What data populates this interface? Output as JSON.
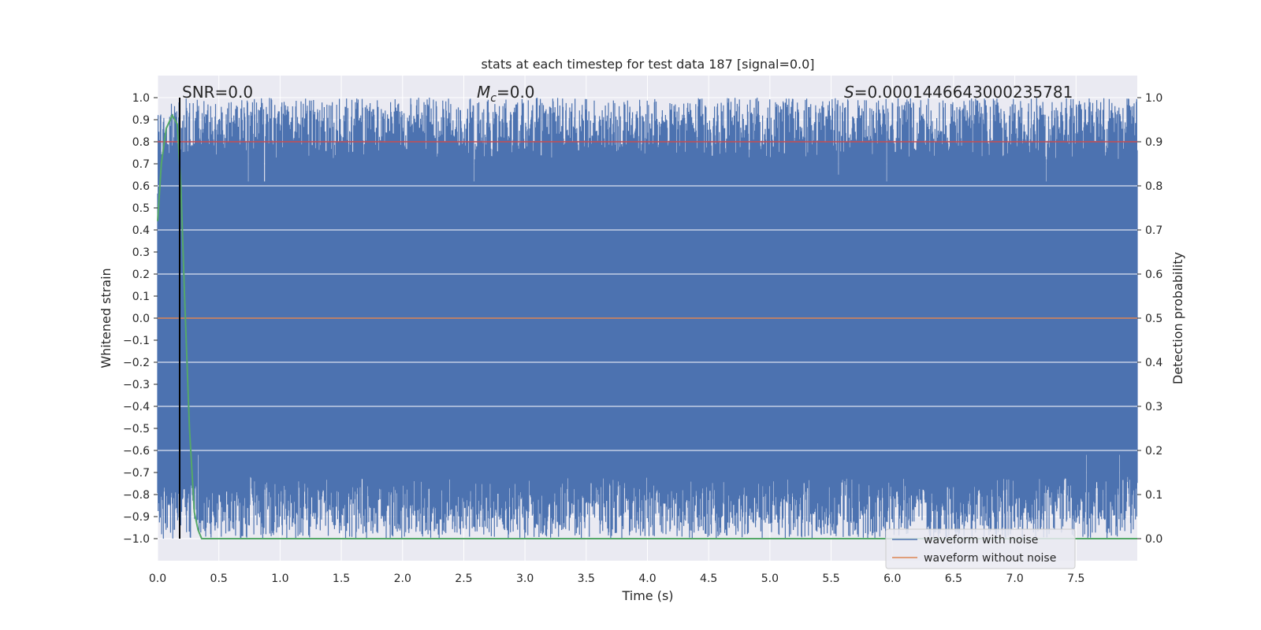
{
  "chart_data": {
    "type": "line",
    "title": "stats at each timestep for test data 187 [signal=0.0]",
    "xlabel": "Time (s)",
    "ylabel": "Whitened strain",
    "y2label": "Detection probability",
    "xlim": [
      0.0,
      8.0
    ],
    "ylim": [
      -1.1,
      1.1
    ],
    "y2lim": [
      -0.05,
      1.05
    ],
    "xticks": [
      "0.0",
      "0.5",
      "1.0",
      "1.5",
      "2.0",
      "2.5",
      "3.0",
      "3.5",
      "4.0",
      "4.5",
      "5.0",
      "5.5",
      "6.0",
      "6.5",
      "7.0",
      "7.5"
    ],
    "yticks": [
      "1.0",
      "0.9",
      "0.8",
      "0.7",
      "0.6",
      "0.5",
      "0.4",
      "0.3",
      "0.2",
      "0.1",
      "0.0",
      "−0.1",
      "−0.2",
      "−0.3",
      "−0.4",
      "−0.5",
      "−0.6",
      "−0.7",
      "−0.8",
      "−0.9",
      "−1.0"
    ],
    "y2ticks": [
      "1.0",
      "0.9",
      "0.8",
      "0.7",
      "0.6",
      "0.5",
      "0.4",
      "0.3",
      "0.2",
      "0.1",
      "0.0"
    ],
    "grid": true,
    "annotations": {
      "snr_label": "SNR=0.0",
      "mc_symbol": "M",
      "mc_subscript": "c",
      "mc_value": "=0.0",
      "s_symbol": "S",
      "s_value": "=0.0001446643000235781"
    },
    "vline_x": 0.18,
    "threshold_probability": 0.9,
    "series": [
      {
        "name": "waveform with noise",
        "color": "#4c72b0",
        "description": "dense noisy whitened strain spanning roughly -1.0 to 1.0 across 0–8 s"
      },
      {
        "name": "waveform without noise",
        "color": "#dd8452",
        "x": [
          0.0,
          8.0
        ],
        "y": [
          0.0,
          0.0
        ]
      },
      {
        "name": "",
        "color": "#55a868",
        "axis": "right",
        "x": [
          0.0,
          0.03,
          0.07,
          0.12,
          0.16,
          0.19,
          0.22,
          0.26,
          0.3,
          0.33,
          0.36,
          0.4,
          8.0
        ],
        "y": [
          0.72,
          0.85,
          0.93,
          0.96,
          0.94,
          0.8,
          0.55,
          0.25,
          0.06,
          0.02,
          0.0,
          0.0,
          0.0
        ]
      }
    ],
    "legend_location": "lower-right"
  }
}
